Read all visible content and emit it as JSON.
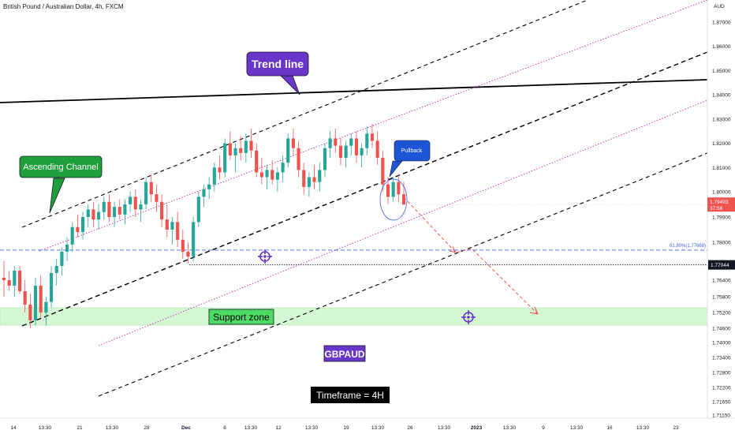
{
  "header": {
    "title": "British Pound / Australian Dollar, 4h, FXCM",
    "currency": "AUD"
  },
  "chart_data": {
    "type": "candlestick",
    "symbol": "GBPAUD",
    "timeframe_label": "Timeframe = 4H",
    "x_ticks": [
      "14",
      "13:30",
      "21",
      "13:30",
      "28",
      "Dec",
      "6",
      "13:30",
      "12",
      "13:30",
      "19",
      "13:30",
      "26",
      "13:30",
      "2023",
      "13:30",
      "9",
      "13:30",
      "16",
      "13:30",
      "23"
    ],
    "y_ticks": [
      "1.87000",
      "1.86000",
      "1.85000",
      "1.84000",
      "1.83000",
      "1.82000",
      "1.81000",
      "1.80000",
      "1.79000",
      "1.78000",
      "1.76400",
      "1.75800",
      "1.75200",
      "1.74600",
      "1.74000",
      "1.73400",
      "1.72800",
      "1.72200",
      "1.71650",
      "1.71150"
    ],
    "y_tick_values": [
      1.87,
      1.86,
      1.85,
      1.84,
      1.83,
      1.82,
      1.81,
      1.8,
      1.79,
      1.78,
      1.764,
      1.758,
      1.752,
      1.746,
      1.74,
      1.734,
      1.728,
      1.722,
      1.7165,
      1.7115
    ],
    "price_label": "1.79493",
    "countdown_label": "37:58",
    "level_label": "1.77044",
    "fib_label": "61.80%(1.77668)",
    "annotations": {
      "trend_line": "Trend line",
      "ascending_channel": "Ascending Channel",
      "pullback": "Pullback",
      "support_zone": "Support zone",
      "symbol": "GBPAUD",
      "timeframe": "Timeframe = 4H"
    },
    "colors": {
      "up": "#26a69a",
      "down": "#ef5350",
      "support_zone": "#d4f7d4",
      "purple": "#6a36c9",
      "green_label": "#1e9e3c",
      "pullback_blue": "#1c55d6",
      "magenta": "#c02aa6",
      "fib_blue": "#3d5ee8",
      "price_red": "#ef5350"
    }
  }
}
